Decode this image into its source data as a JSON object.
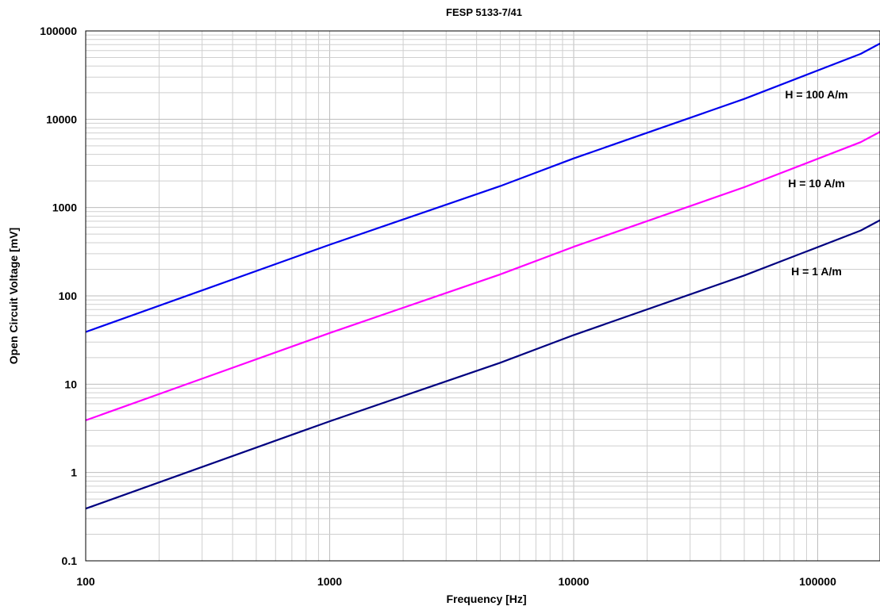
{
  "chart_data": {
    "type": "line",
    "title": "",
    "subtitle": "FESP 5133-7/41",
    "xlabel": "Frequency [Hz]",
    "ylabel": "Open Circuit Voltage [mV]",
    "x_scale": "log",
    "y_scale": "log",
    "xlim": [
      100,
      180000
    ],
    "ylim": [
      0.1,
      100000
    ],
    "grid": true,
    "x_ticks": [
      100,
      1000,
      10000,
      100000
    ],
    "x_tick_labels": [
      "100",
      "1000",
      "10000",
      "100000"
    ],
    "y_ticks": [
      0.1,
      1,
      10,
      100,
      1000,
      10000,
      100000
    ],
    "y_tick_labels": [
      "0.1",
      "1",
      "10",
      "100",
      "1000",
      "10000",
      "100000"
    ],
    "series": [
      {
        "name": "H = 100 A/m",
        "color": "#0000ee",
        "x": [
          100,
          1000,
          5000,
          10000,
          50000,
          150000,
          180000
        ],
        "y": [
          39,
          380,
          1750,
          3600,
          17000,
          55000,
          72000
        ]
      },
      {
        "name": "H = 10 A/m",
        "color": "#ff00ff",
        "x": [
          100,
          1000,
          5000,
          10000,
          50000,
          150000,
          180000
        ],
        "y": [
          3.9,
          38,
          175,
          360,
          1700,
          5500,
          7200
        ]
      },
      {
        "name": "H = 1 A/m",
        "color": "#000080",
        "x": [
          100,
          1000,
          5000,
          10000,
          50000,
          150000,
          180000
        ],
        "y": [
          0.39,
          3.8,
          17.5,
          36,
          170,
          550,
          720
        ]
      }
    ]
  }
}
